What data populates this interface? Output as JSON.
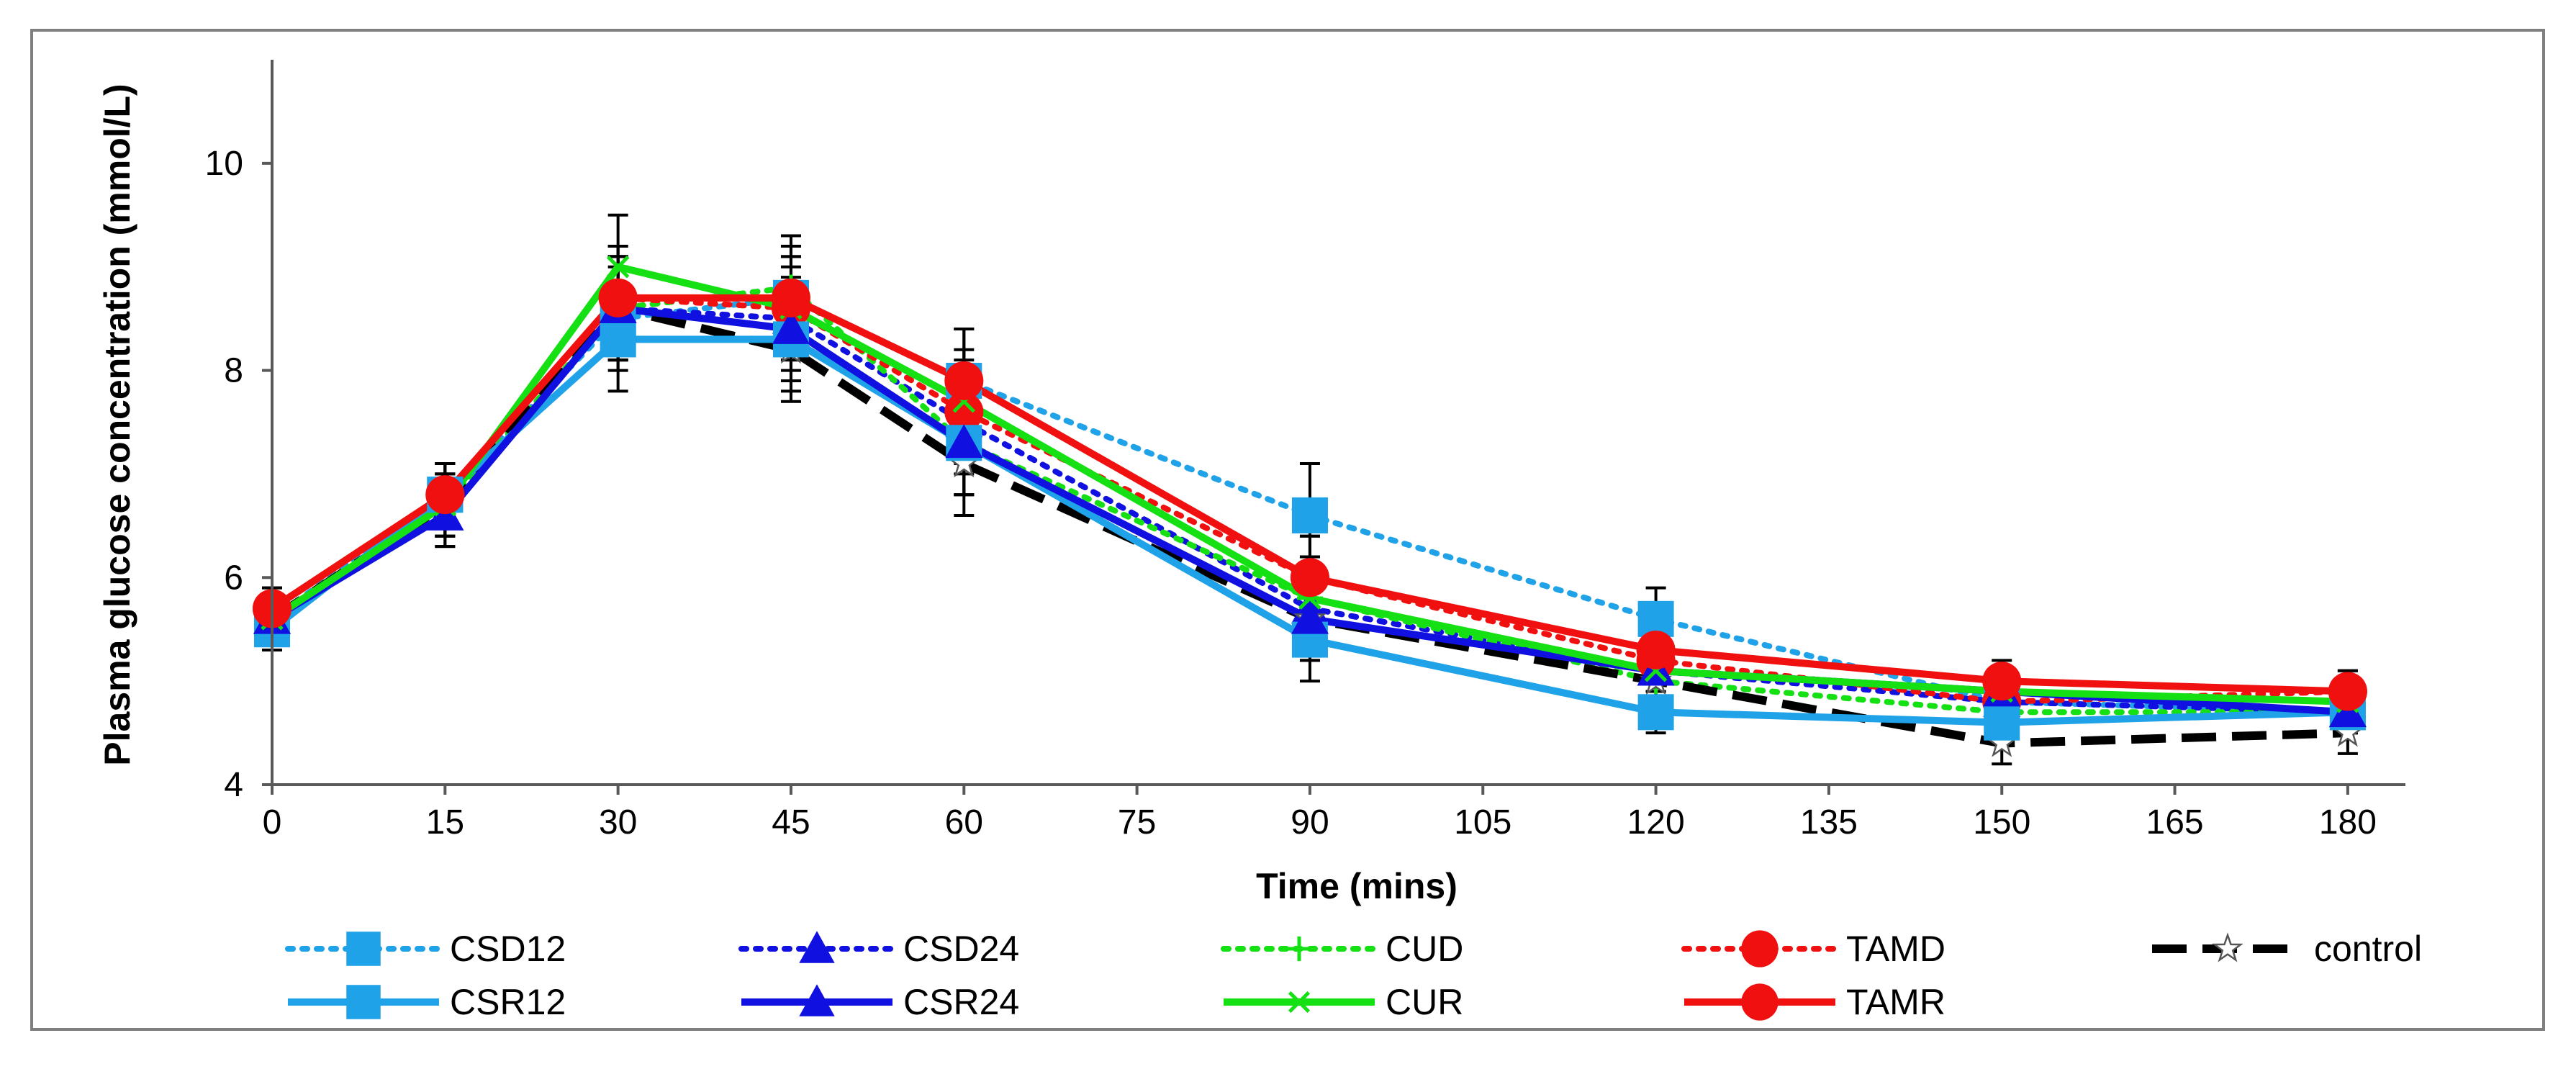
{
  "chart_data": {
    "type": "line",
    "title": "",
    "xlabel": "Time (mins)",
    "ylabel": "Plasma glucose concentration (mmol/L)",
    "x": [
      0,
      15,
      30,
      45,
      60,
      90,
      120,
      150,
      180
    ],
    "xticks": [
      0,
      15,
      30,
      45,
      60,
      75,
      90,
      105,
      120,
      135,
      150,
      165,
      180
    ],
    "xlim": [
      0,
      185
    ],
    "ylim": [
      4,
      11
    ],
    "yticks": [
      4,
      6,
      8,
      10
    ],
    "grid": false,
    "legend_position": "bottom",
    "series": [
      {
        "name": "CSD12",
        "color": "#1fa2e8",
        "style": "dotted",
        "marker": "square",
        "values": [
          5.6,
          6.8,
          8.5,
          8.7,
          7.9,
          6.6,
          5.6,
          4.8,
          4.7
        ],
        "errors": [
          0.2,
          0.3,
          0.5,
          0.5,
          0.5,
          0.5,
          0.3,
          0.2,
          0.2
        ]
      },
      {
        "name": "CSD24",
        "color": "#1010e0",
        "style": "dotted",
        "marker": "triangle",
        "values": [
          5.6,
          6.6,
          8.6,
          8.5,
          7.5,
          5.7,
          5.1,
          4.8,
          4.7
        ],
        "errors": [
          0.2,
          0.3,
          0.5,
          0.5,
          0.5,
          0.4,
          0.3,
          0.2,
          0.2
        ]
      },
      {
        "name": "CUD",
        "color": "#14e014",
        "style": "dotted",
        "marker": "plus",
        "values": [
          5.6,
          6.7,
          8.6,
          8.8,
          7.3,
          5.8,
          5.0,
          4.7,
          4.7
        ],
        "errors": [
          0.2,
          0.3,
          0.5,
          0.5,
          0.5,
          0.4,
          0.3,
          0.2,
          0.2
        ]
      },
      {
        "name": "TAMD",
        "color": "#f01010",
        "style": "dotted",
        "marker": "circle",
        "values": [
          5.7,
          6.8,
          8.7,
          8.6,
          7.6,
          6.0,
          5.2,
          4.8,
          4.9
        ],
        "errors": [
          0.2,
          0.3,
          0.5,
          0.5,
          0.5,
          0.4,
          0.3,
          0.2,
          0.2
        ]
      },
      {
        "name": "control",
        "color": "#000000",
        "style": "dashed",
        "marker": "star",
        "values": [
          5.6,
          6.7,
          8.6,
          8.2,
          7.1,
          5.6,
          5.0,
          4.4,
          4.5
        ],
        "errors": [
          0.2,
          0.3,
          0.5,
          0.5,
          0.5,
          0.4,
          0.3,
          0.2,
          0.2
        ]
      },
      {
        "name": "CSR12",
        "color": "#1fa2e8",
        "style": "solid",
        "marker": "square",
        "values": [
          5.5,
          6.8,
          8.3,
          8.3,
          7.3,
          5.4,
          4.7,
          4.6,
          4.7
        ],
        "errors": [
          0.2,
          0.3,
          0.5,
          0.5,
          0.5,
          0.4,
          0.2,
          0.2,
          0.2
        ]
      },
      {
        "name": "CSR24",
        "color": "#1010e0",
        "style": "solid",
        "marker": "triangle",
        "values": [
          5.6,
          6.6,
          8.6,
          8.4,
          7.3,
          5.6,
          5.1,
          4.9,
          4.7
        ],
        "errors": [
          0.2,
          0.3,
          0.5,
          0.5,
          0.5,
          0.4,
          0.3,
          0.2,
          0.2
        ]
      },
      {
        "name": "CUR",
        "color": "#14e014",
        "style": "solid",
        "marker": "x",
        "values": [
          5.6,
          6.7,
          9.0,
          8.6,
          7.7,
          5.8,
          5.1,
          4.9,
          4.8
        ],
        "errors": [
          0.2,
          0.3,
          0.5,
          0.5,
          0.5,
          0.4,
          0.3,
          0.2,
          0.2
        ]
      },
      {
        "name": "TAMR",
        "color": "#f01010",
        "style": "solid",
        "marker": "circle",
        "values": [
          5.7,
          6.8,
          8.7,
          8.7,
          7.9,
          6.0,
          5.3,
          5.0,
          4.9
        ],
        "errors": [
          0.2,
          0.3,
          0.5,
          0.5,
          0.5,
          0.4,
          0.3,
          0.2,
          0.2
        ]
      }
    ]
  }
}
